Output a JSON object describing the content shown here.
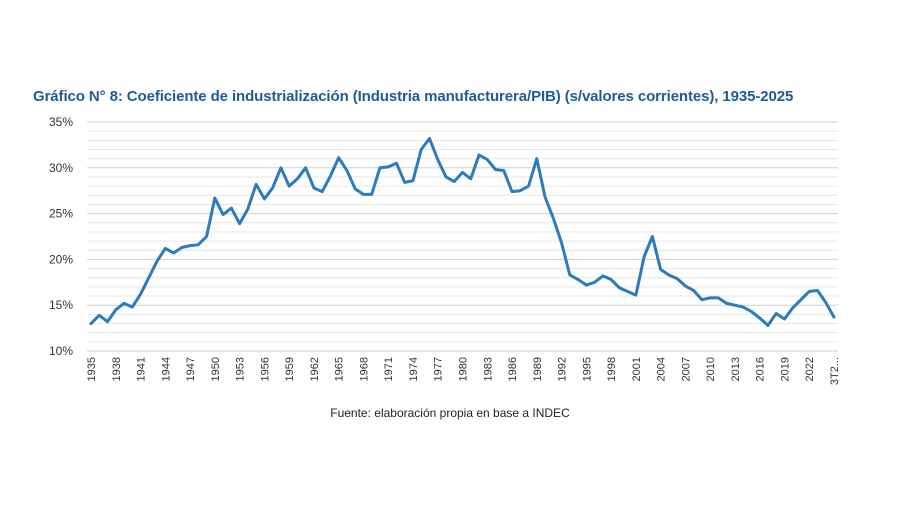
{
  "chart_data": {
    "type": "line",
    "title": "Gráfico N° 8: Coeficiente de industrialización (Industria manufacturera/PIB) (s/valores corrientes), 1935-2025",
    "source": "Fuente: elaboración propia en base a INDEC",
    "xlabel": "",
    "ylabel": "",
    "ylim": [
      10,
      35
    ],
    "yticks": [
      10,
      15,
      20,
      25,
      30,
      35
    ],
    "ytick_labels": [
      "10%",
      "15%",
      "20%",
      "25%",
      "30%",
      "35%"
    ],
    "xtick_labels": [
      "1935",
      "1938",
      "1941",
      "1944",
      "1947",
      "1950",
      "1953",
      "1956",
      "1959",
      "1962",
      "1965",
      "1968",
      "1971",
      "1974",
      "1977",
      "1980",
      "1983",
      "1986",
      "1989",
      "1992",
      "1995",
      "1998",
      "2001",
      "2004",
      "2007",
      "2010",
      "2013",
      "2016",
      "2019",
      "2022",
      "3T2..."
    ],
    "grid": true,
    "series": [
      {
        "name": "Coeficiente de industrialización",
        "color": "#2b7bbd",
        "x": [
          1935,
          1936,
          1937,
          1938,
          1939,
          1940,
          1941,
          1942,
          1943,
          1944,
          1945,
          1946,
          1947,
          1948,
          1949,
          1950,
          1951,
          1952,
          1953,
          1954,
          1955,
          1956,
          1957,
          1958,
          1959,
          1960,
          1961,
          1962,
          1963,
          1964,
          1965,
          1966,
          1967,
          1968,
          1969,
          1970,
          1971,
          1972,
          1973,
          1974,
          1975,
          1976,
          1977,
          1978,
          1979,
          1980,
          1981,
          1982,
          1983,
          1984,
          1985,
          1986,
          1987,
          1988,
          1989,
          1990,
          1991,
          1992,
          1993,
          1994,
          1995,
          1996,
          1997,
          1998,
          1999,
          2000,
          2001,
          2002,
          2003,
          2004,
          2005,
          2006,
          2007,
          2008,
          2009,
          2010,
          2011,
          2012,
          2013,
          2014,
          2015,
          2016,
          2017,
          2018,
          2019,
          2020,
          2021,
          2022,
          2023,
          2024,
          2025
        ],
        "values": [
          13.0,
          13.9,
          13.2,
          14.5,
          15.2,
          14.8,
          16.2,
          18.0,
          19.8,
          21.2,
          20.7,
          21.3,
          21.5,
          21.6,
          22.5,
          26.7,
          24.9,
          25.6,
          23.9,
          25.5,
          28.2,
          26.6,
          27.8,
          30.0,
          28.0,
          28.8,
          30.0,
          27.8,
          27.4,
          29.1,
          31.1,
          29.7,
          27.7,
          27.1,
          27.1,
          30.0,
          30.1,
          30.5,
          28.4,
          28.6,
          32.0,
          33.2,
          30.9,
          29.0,
          28.5,
          29.5,
          28.8,
          31.4,
          30.9,
          29.8,
          29.7,
          27.4,
          27.5,
          28.0,
          31.0,
          26.8,
          24.5,
          21.8,
          18.3,
          17.8,
          17.2,
          17.5,
          18.2,
          17.8,
          16.9,
          16.5,
          16.1,
          20.3,
          22.5,
          18.9,
          18.3,
          17.9,
          17.1,
          16.6,
          15.6,
          15.8,
          15.8,
          15.2,
          15.0,
          14.8,
          14.3,
          13.6,
          12.8,
          14.1,
          13.5,
          14.7,
          15.6,
          16.5,
          16.6,
          15.3,
          13.7
        ]
      }
    ]
  }
}
